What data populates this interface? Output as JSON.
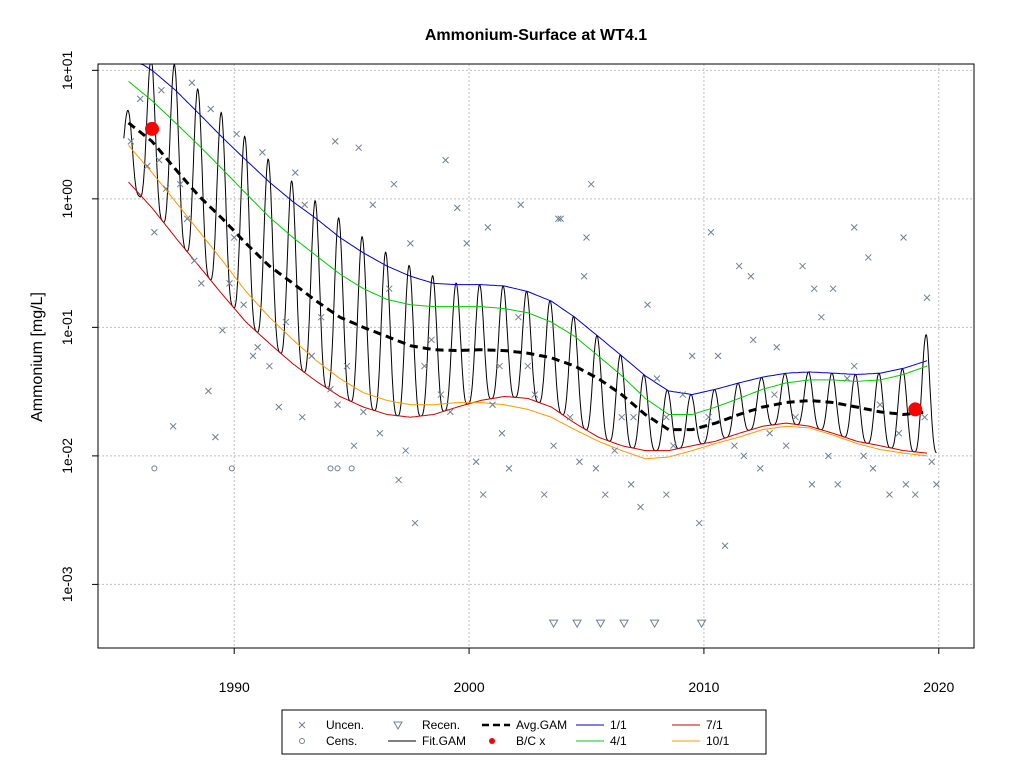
{
  "chart_data": {
    "type": "scatter",
    "title": "Ammonium-Surface at WT4.1",
    "ylabel": "Ammonium [mg/L]",
    "xlabel": "",
    "y_scale": "log",
    "xlim": [
      1984.2,
      2021.5
    ],
    "ylim": [
      0.00032,
      11.2
    ],
    "x_ticks": [
      {
        "value": 1990,
        "label": "1990"
      },
      {
        "value": 2000,
        "label": "2000"
      },
      {
        "value": 2010,
        "label": "2010"
      },
      {
        "value": 2020,
        "label": "2020"
      }
    ],
    "y_ticks": [
      {
        "value": 10,
        "label": "1e+01"
      },
      {
        "value": 1,
        "label": "1e+00"
      },
      {
        "value": 0.1,
        "label": "1e-01"
      },
      {
        "value": 0.01,
        "label": "1e-02"
      },
      {
        "value": 0.001,
        "label": "1e-03"
      }
    ],
    "grid": true,
    "legend_position": "bottom-center",
    "legend": [
      {
        "label": "Uncen.",
        "symbol": "x",
        "color": "#708090"
      },
      {
        "label": "Cens.",
        "symbol": "circle",
        "color": "#708090"
      },
      {
        "label": "Recen.",
        "symbol": "triangle-down",
        "color": "#708090"
      },
      {
        "label": "Fit.GAM",
        "symbol": "line",
        "color": "#000000"
      },
      {
        "label": "Avg.GAM",
        "symbol": "dashed-line",
        "color": "#000000"
      },
      {
        "label": "B/C x",
        "symbol": "dot",
        "color": "#ff0000"
      },
      {
        "label": "1/1",
        "symbol": "line",
        "color": "#0000cc"
      },
      {
        "label": "4/1",
        "symbol": "line",
        "color": "#00cc00"
      },
      {
        "label": "7/1",
        "symbol": "line",
        "color": "#cc0000"
      },
      {
        "label": "10/1",
        "symbol": "line",
        "color": "#ff9900"
      }
    ],
    "series": [
      {
        "name": "Avg.GAM",
        "style": "dashed",
        "color": "#000000",
        "x": [
          1985.5,
          1986.5,
          1987.5,
          1988.5,
          1989.5,
          1990.5,
          1991.5,
          1992.5,
          1993.5,
          1994.5,
          1995.5,
          1996.5,
          1997.5,
          1998.5,
          1999.5,
          2000.5,
          2001.5,
          2002.5,
          2003.5,
          2004.5,
          2005.5,
          2006.5,
          2007.5,
          2008.5,
          2009.5,
          2010.5,
          2011.5,
          2012.5,
          2013.5,
          2014.5,
          2015.5,
          2016.5,
          2017.5,
          2018.5,
          2019.5
        ],
        "y": [
          3.9,
          2.8,
          1.7,
          1.05,
          0.7,
          0.45,
          0.3,
          0.22,
          0.16,
          0.12,
          0.1,
          0.085,
          0.072,
          0.067,
          0.066,
          0.067,
          0.066,
          0.063,
          0.058,
          0.05,
          0.04,
          0.03,
          0.021,
          0.016,
          0.016,
          0.018,
          0.021,
          0.024,
          0.026,
          0.027,
          0.026,
          0.024,
          0.022,
          0.021,
          0.022
        ]
      },
      {
        "name": "1/1",
        "color": "#0000cc",
        "x": [
          1985.5,
          1986.5,
          1987.5,
          1988.5,
          1989.5,
          1990.5,
          1991.5,
          1992.5,
          1993.5,
          1994.5,
          1995.5,
          1996.5,
          1997.5,
          1998.5,
          1999.5,
          2000.5,
          2001.5,
          2002.5,
          2003.5,
          2004.5,
          2005.5,
          2006.5,
          2007.5,
          2008.5,
          2009.5,
          2010.5,
          2011.5,
          2012.5,
          2013.5,
          2014.5,
          2015.5,
          2016.5,
          2017.5,
          2018.5,
          2019.5
        ],
        "y": [
          13,
          10,
          7,
          4.6,
          3,
          2,
          1.35,
          0.95,
          0.7,
          0.5,
          0.38,
          0.3,
          0.25,
          0.22,
          0.215,
          0.215,
          0.21,
          0.19,
          0.16,
          0.12,
          0.085,
          0.06,
          0.042,
          0.032,
          0.03,
          0.033,
          0.037,
          0.041,
          0.044,
          0.045,
          0.044,
          0.043,
          0.044,
          0.048,
          0.055
        ]
      },
      {
        "name": "4/1",
        "color": "#00cc00",
        "x": [
          1985.5,
          1986.5,
          1987.5,
          1988.5,
          1989.5,
          1990.5,
          1991.5,
          1992.5,
          1993.5,
          1994.5,
          1995.5,
          1996.5,
          1997.5,
          1998.5,
          1999.5,
          2000.5,
          2001.5,
          2002.5,
          2003.5,
          2004.5,
          2005.5,
          2006.5,
          2007.5,
          2008.5,
          2009.5,
          2010.5,
          2011.5,
          2012.5,
          2013.5,
          2014.5,
          2015.5,
          2016.5,
          2017.5,
          2018.5,
          2019.5
        ],
        "y": [
          8.2,
          5.8,
          3.9,
          2.6,
          1.7,
          1.1,
          0.72,
          0.5,
          0.36,
          0.26,
          0.2,
          0.165,
          0.15,
          0.145,
          0.145,
          0.145,
          0.14,
          0.13,
          0.11,
          0.085,
          0.06,
          0.042,
          0.028,
          0.021,
          0.021,
          0.024,
          0.028,
          0.033,
          0.037,
          0.039,
          0.039,
          0.038,
          0.039,
          0.043,
          0.05
        ]
      },
      {
        "name": "7/1",
        "color": "#cc0000",
        "x": [
          1985.5,
          1986.5,
          1987.5,
          1988.5,
          1989.5,
          1990.5,
          1991.5,
          1992.5,
          1993.5,
          1994.5,
          1995.5,
          1996.5,
          1997.5,
          1998.5,
          1999.5,
          2000.5,
          2001.5,
          2002.5,
          2003.5,
          2004.5,
          2005.5,
          2006.5,
          2007.5,
          2008.5,
          2009.5,
          2010.5,
          2011.5,
          2012.5,
          2013.5,
          2014.5,
          2015.5,
          2016.5,
          2017.5,
          2018.5,
          2019.5
        ],
        "y": [
          1.35,
          0.85,
          0.5,
          0.3,
          0.18,
          0.11,
          0.075,
          0.052,
          0.038,
          0.029,
          0.024,
          0.021,
          0.02,
          0.021,
          0.024,
          0.027,
          0.029,
          0.028,
          0.024,
          0.018,
          0.014,
          0.012,
          0.011,
          0.011,
          0.012,
          0.013,
          0.015,
          0.017,
          0.018,
          0.017,
          0.015,
          0.013,
          0.012,
          0.011,
          0.0105
        ]
      },
      {
        "name": "10/1",
        "color": "#ff9900",
        "x": [
          1985.5,
          1986.5,
          1987.5,
          1988.5,
          1989.5,
          1990.5,
          1991.5,
          1992.5,
          1993.5,
          1994.5,
          1995.5,
          1996.5,
          1997.5,
          1998.5,
          1999.5,
          2000.5,
          2001.5,
          2002.5,
          2003.5,
          2004.5,
          2005.5,
          2006.5,
          2007.5,
          2008.5,
          2009.5,
          2010.5,
          2011.5,
          2012.5,
          2013.5,
          2014.5,
          2015.5,
          2016.5,
          2017.5,
          2018.5,
          2019.5
        ],
        "y": [
          2.6,
          1.6,
          0.95,
          0.56,
          0.33,
          0.19,
          0.12,
          0.08,
          0.055,
          0.04,
          0.031,
          0.027,
          0.025,
          0.025,
          0.026,
          0.026,
          0.025,
          0.023,
          0.02,
          0.016,
          0.013,
          0.011,
          0.0095,
          0.0098,
          0.011,
          0.0125,
          0.014,
          0.016,
          0.017,
          0.0165,
          0.0145,
          0.0125,
          0.0112,
          0.0105,
          0.01
        ]
      }
    ],
    "fit_gam": {
      "name": "Fit.GAM",
      "color": "#000000",
      "years": [
        1985.3,
        1986.5,
        1987.5,
        1988.5,
        1989.5,
        1990.5,
        1991.5,
        1992.5,
        1993.5,
        1994.5,
        1995.5,
        1996.5,
        1997.5,
        1998.5,
        1999.5,
        2000.5,
        2001.5,
        2002.5,
        2003.5,
        2004.5,
        2005.5,
        2006.5,
        2007.5,
        2008.5,
        2009.5,
        2010.5,
        2011.5,
        2012.5,
        2013.5,
        2014.5,
        2015.5,
        2016.5,
        2017.5,
        2018.5,
        2019.5,
        2019.9
      ],
      "peak": [
        4.2,
        13,
        11,
        7,
        4.6,
        3,
        2,
        1.35,
        0.95,
        0.7,
        0.5,
        0.38,
        0.3,
        0.25,
        0.22,
        0.215,
        0.21,
        0.19,
        0.16,
        0.12,
        0.085,
        0.06,
        0.042,
        0.032,
        0.03,
        0.033,
        0.037,
        0.041,
        0.044,
        0.045,
        0.044,
        0.043,
        0.044,
        0.048,
        0.09,
        0.055
      ],
      "trough": [
        1.35,
        0.85,
        0.5,
        0.3,
        0.18,
        0.11,
        0.075,
        0.052,
        0.038,
        0.029,
        0.024,
        0.021,
        0.02,
        0.021,
        0.024,
        0.027,
        0.029,
        0.028,
        0.024,
        0.018,
        0.014,
        0.012,
        0.011,
        0.011,
        0.012,
        0.013,
        0.015,
        0.017,
        0.018,
        0.017,
        0.015,
        0.013,
        0.012,
        0.011,
        0.0105,
        0.0105
      ]
    },
    "bc_points": {
      "name": "B/C x",
      "color": "#ff0000",
      "x": [
        1986.5,
        2019.0
      ],
      "y": [
        3.5,
        0.023
      ]
    },
    "uncensored_points": {
      "name": "Uncen.",
      "color": "#708090",
      "x": [
        1985.6,
        1986.0,
        1986.3,
        1986.6,
        1986.8,
        1987.1,
        1987.4,
        1987.7,
        1988.0,
        1988.3,
        1988.6,
        1988.9,
        1989.2,
        1989.5,
        1989.8,
        1990.1,
        1990.4,
        1990.8,
        1991.2,
        1991.5,
        1991.9,
        1992.2,
        1992.6,
        1992.9,
        1993.3,
        1993.7,
        1994.1,
        1994.4,
        1994.8,
        1995.1,
        1995.5,
        1995.9,
        1996.2,
        1996.6,
        1997.0,
        1997.3,
        1997.7,
        1998.1,
        1998.4,
        1998.8,
        1999.2,
        1999.5,
        1999.9,
        2000.3,
        2000.6,
        2001.0,
        2001.4,
        2001.7,
        2002.1,
        2002.5,
        2002.8,
        2003.2,
        2003.6,
        2003.9,
        2004.3,
        2004.7,
        2005.0,
        2005.4,
        2005.8,
        2006.2,
        2006.5,
        2006.9,
        2007.3,
        2007.6,
        2008.0,
        2008.4,
        2008.7,
        2009.1,
        2009.5,
        2009.8,
        2010.2,
        2010.6,
        2010.9,
        2011.3,
        2011.7,
        2012.0,
        2012.4,
        2012.8,
        2013.1,
        2013.5,
        2013.9,
        2014.2,
        2014.6,
        2015.0,
        2015.3,
        2015.7,
        2016.1,
        2016.4,
        2016.8,
        2017.2,
        2017.5,
        2017.9,
        2018.3,
        2018.6,
        2019.0,
        2019.4,
        2019.7,
        1986.9,
        1988.2,
        1990.0,
        1991.0,
        1994.3,
        1995.3,
        1997.5,
        2000.8,
        2001.3,
        2003.8,
        2005.2,
        2007.0,
        2010.3,
        2011.5,
        2013.0,
        2015.5,
        2016.4,
        2018.5,
        2019.5,
        1989.0,
        1993.0,
        1996.8,
        1999.0,
        2002.2,
        2004.9,
        2008.4,
        2012.1,
        2014.7,
        2017.0,
        2019.9
      ],
      "y": [
        2.8,
        6.0,
        1.8,
        0.55,
        2.0,
        1.2,
        0.017,
        1.3,
        0.7,
        0.33,
        0.22,
        0.032,
        0.014,
        0.095,
        0.22,
        3.2,
        0.15,
        0.06,
        2.3,
        0.05,
        0.024,
        0.11,
        1.6,
        0.02,
        0.06,
        0.12,
        0.033,
        0.025,
        0.05,
        0.012,
        0.022,
        0.9,
        0.015,
        0.2,
        0.0065,
        0.011,
        0.003,
        0.05,
        0.08,
        0.03,
        0.022,
        0.85,
        0.45,
        0.009,
        0.005,
        0.025,
        0.015,
        0.008,
        0.12,
        0.05,
        0.03,
        0.005,
        0.012,
        0.7,
        0.02,
        0.009,
        0.5,
        0.008,
        0.005,
        0.011,
        0.02,
        0.006,
        0.004,
        0.15,
        0.04,
        0.02,
        0.012,
        0.03,
        0.06,
        0.003,
        0.02,
        0.06,
        0.002,
        0.012,
        0.01,
        0.25,
        0.008,
        0.015,
        0.07,
        0.012,
        0.02,
        0.3,
        0.006,
        0.12,
        0.01,
        0.006,
        0.04,
        0.6,
        0.01,
        0.008,
        0.025,
        0.005,
        0.015,
        0.006,
        0.005,
        0.02,
        0.009,
        7.0,
        8.0,
        0.5,
        0.07,
        2.8,
        2.5,
        0.45,
        0.6,
        0.05,
        0.7,
        1.3,
        0.02,
        0.55,
        0.3,
        0.03,
        0.2,
        0.05,
        0.5,
        0.17,
        5.0,
        0.9,
        1.3,
        2.0,
        0.9,
        0.25,
        0.005,
        0.08,
        0.2,
        0.35,
        0.006
      ]
    },
    "censored_points": {
      "name": "Cens.",
      "color": "#708090",
      "x": [
        1986.6,
        1989.9,
        1994.1,
        1994.4,
        1995.0
      ],
      "y": [
        0.008,
        0.008,
        0.008,
        0.008,
        0.008
      ]
    },
    "recensored_points": {
      "name": "Recen.",
      "color": "#708090",
      "x": [
        2003.6,
        2004.6,
        2005.6,
        2006.6,
        2007.9,
        2009.9
      ],
      "y": [
        0.0005,
        0.0005,
        0.0005,
        0.0005,
        0.0005,
        0.0005
      ]
    }
  }
}
